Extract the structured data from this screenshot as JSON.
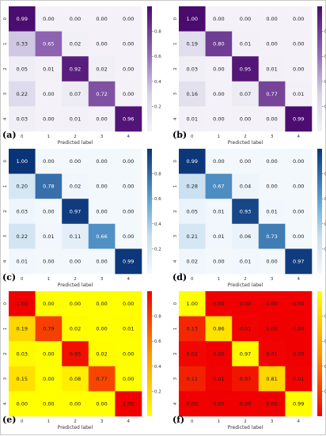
{
  "chart_data": [
    {
      "type": "heatmap",
      "panel_label": "(a)",
      "colormap": "purples",
      "xlabel": "Predicted label",
      "ylabel": "Actual label",
      "x_ticks": [
        "0",
        "1",
        "2",
        "3",
        "4"
      ],
      "y_ticks": [
        "0",
        "1",
        "2",
        "3",
        "4"
      ],
      "colorbar_ticks": [
        "0.8",
        "0.6",
        "0.4",
        "0.2"
      ],
      "colorbar_range": [
        0,
        1
      ],
      "values": [
        [
          "0.99",
          "0.00",
          "0.00",
          "0.00",
          "0.00"
        ],
        [
          "0.33",
          "0.65",
          "0.02",
          "0.00",
          "0.00"
        ],
        [
          "0.05",
          "0.01",
          "0.92",
          "0.02",
          "0.00"
        ],
        [
          "0.22",
          "0.00",
          "0.07",
          "0.72",
          "0.00"
        ],
        [
          "0.03",
          "0.00",
          "0.01",
          "0.00",
          "0.96"
        ]
      ]
    },
    {
      "type": "heatmap",
      "panel_label": "(b)",
      "colormap": "purples",
      "xlabel": "Predicted label",
      "ylabel": "",
      "x_ticks": [
        "0",
        "1",
        "2",
        "3",
        "4"
      ],
      "y_ticks": [
        "0",
        "1",
        "2",
        "3",
        "4"
      ],
      "colorbar_ticks": [
        "0.8",
        "0.6",
        "0.4",
        "0.2"
      ],
      "colorbar_range": [
        0,
        1
      ],
      "values": [
        [
          "1.00",
          "0.00",
          "0.00",
          "0.00",
          "0.00"
        ],
        [
          "0.19",
          "0.80",
          "0.01",
          "0.00",
          "0.00"
        ],
        [
          "0.03",
          "0.00",
          "0.95",
          "0.01",
          "0.00"
        ],
        [
          "0.16",
          "0.00",
          "0.07",
          "0.77",
          "0.01"
        ],
        [
          "0.01",
          "0.00",
          "0.00",
          "0.00",
          "0.99"
        ]
      ]
    },
    {
      "type": "heatmap",
      "panel_label": "(c)",
      "colormap": "blues",
      "xlabel": "Predicted label",
      "ylabel": "",
      "x_ticks": [
        "0",
        "1",
        "2",
        "3",
        "4"
      ],
      "y_ticks": [
        "0",
        "1",
        "2",
        "3",
        "4"
      ],
      "colorbar_ticks": [
        "0.8",
        "0.6",
        "0.4",
        "0.2"
      ],
      "colorbar_range": [
        0,
        1
      ],
      "values": [
        [
          "1.00",
          "0.00",
          "0.00",
          "0.00",
          "0.00"
        ],
        [
          "0.20",
          "0.78",
          "0.02",
          "0.00",
          "0.00"
        ],
        [
          "0.03",
          "0.00",
          "0.97",
          "0.00",
          "0.00"
        ],
        [
          "0.22",
          "0.01",
          "0.11",
          "0.66",
          "0.00"
        ],
        [
          "0.01",
          "0.00",
          "0.00",
          "0.00",
          "0.99"
        ]
      ]
    },
    {
      "type": "heatmap",
      "panel_label": "(d)",
      "colormap": "blues",
      "xlabel": "Predicted label",
      "ylabel": "",
      "x_ticks": [
        "0",
        "1",
        "2",
        "3",
        "4"
      ],
      "y_ticks": [
        "0",
        "1",
        "2",
        "3",
        "4"
      ],
      "colorbar_ticks": [
        "0.8",
        "0.6",
        "0.4",
        "0.2"
      ],
      "colorbar_range": [
        0,
        1
      ],
      "values": [
        [
          "0.99",
          "0.00",
          "0.00",
          "0.00",
          "0.00"
        ],
        [
          "0.28",
          "0.67",
          "0.04",
          "0.00",
          "0.00"
        ],
        [
          "0.05",
          "0.01",
          "0.93",
          "0.01",
          "0.00"
        ],
        [
          "0.21",
          "0.01",
          "0.06",
          "0.73",
          "0.00"
        ],
        [
          "0.02",
          "0.00",
          "0.01",
          "0.00",
          "0.97"
        ]
      ]
    },
    {
      "type": "heatmap",
      "panel_label": "(e)",
      "colormap": "autumn_r",
      "xlabel": "Predicted label",
      "ylabel": "Actual label",
      "x_ticks": [
        "0",
        "1",
        "2",
        "3",
        "4"
      ],
      "y_ticks": [
        "0",
        "1",
        "2",
        "3",
        "4"
      ],
      "colorbar_ticks": [
        "0.8",
        "0.6",
        "0.4",
        "0.2"
      ],
      "colorbar_range": [
        0,
        1
      ],
      "values": [
        [
          "1.00",
          "0.00",
          "0.00",
          "0.00",
          "0.00"
        ],
        [
          "0.19",
          "0.79",
          "0.02",
          "0.00",
          "0.01"
        ],
        [
          "0.03",
          "0.00",
          "0.95",
          "0.02",
          "0.00"
        ],
        [
          "0.15",
          "0.00",
          "0.08",
          "0.77",
          "0.00"
        ],
        [
          "0.00",
          "0.00",
          "0.00",
          "0.00",
          "1.00"
        ]
      ]
    },
    {
      "type": "heatmap",
      "panel_label": "(f)",
      "colormap": "autumn",
      "xlabel": "Predicted label",
      "ylabel": "",
      "x_ticks": [
        "0",
        "1",
        "2",
        "3",
        "4"
      ],
      "y_ticks": [
        "0",
        "1",
        "2",
        "3",
        "4"
      ],
      "colorbar_ticks": [
        "0.8",
        "0.6",
        "0.4",
        "0.2"
      ],
      "colorbar_range": [
        0,
        1
      ],
      "values": [
        [
          "1.00",
          "0.00",
          "0.00",
          "0.00",
          "0.00"
        ],
        [
          "0.13",
          "0.86",
          "0.01",
          "0.00",
          "0.00"
        ],
        [
          "0.02",
          "0.00",
          "0.97",
          "0.01",
          "0.00"
        ],
        [
          "0.11",
          "0.01",
          "0.07",
          "0.81",
          "0.01"
        ],
        [
          "0.00",
          "0.00",
          "0.00",
          "0.00",
          "0.99"
        ]
      ]
    }
  ]
}
